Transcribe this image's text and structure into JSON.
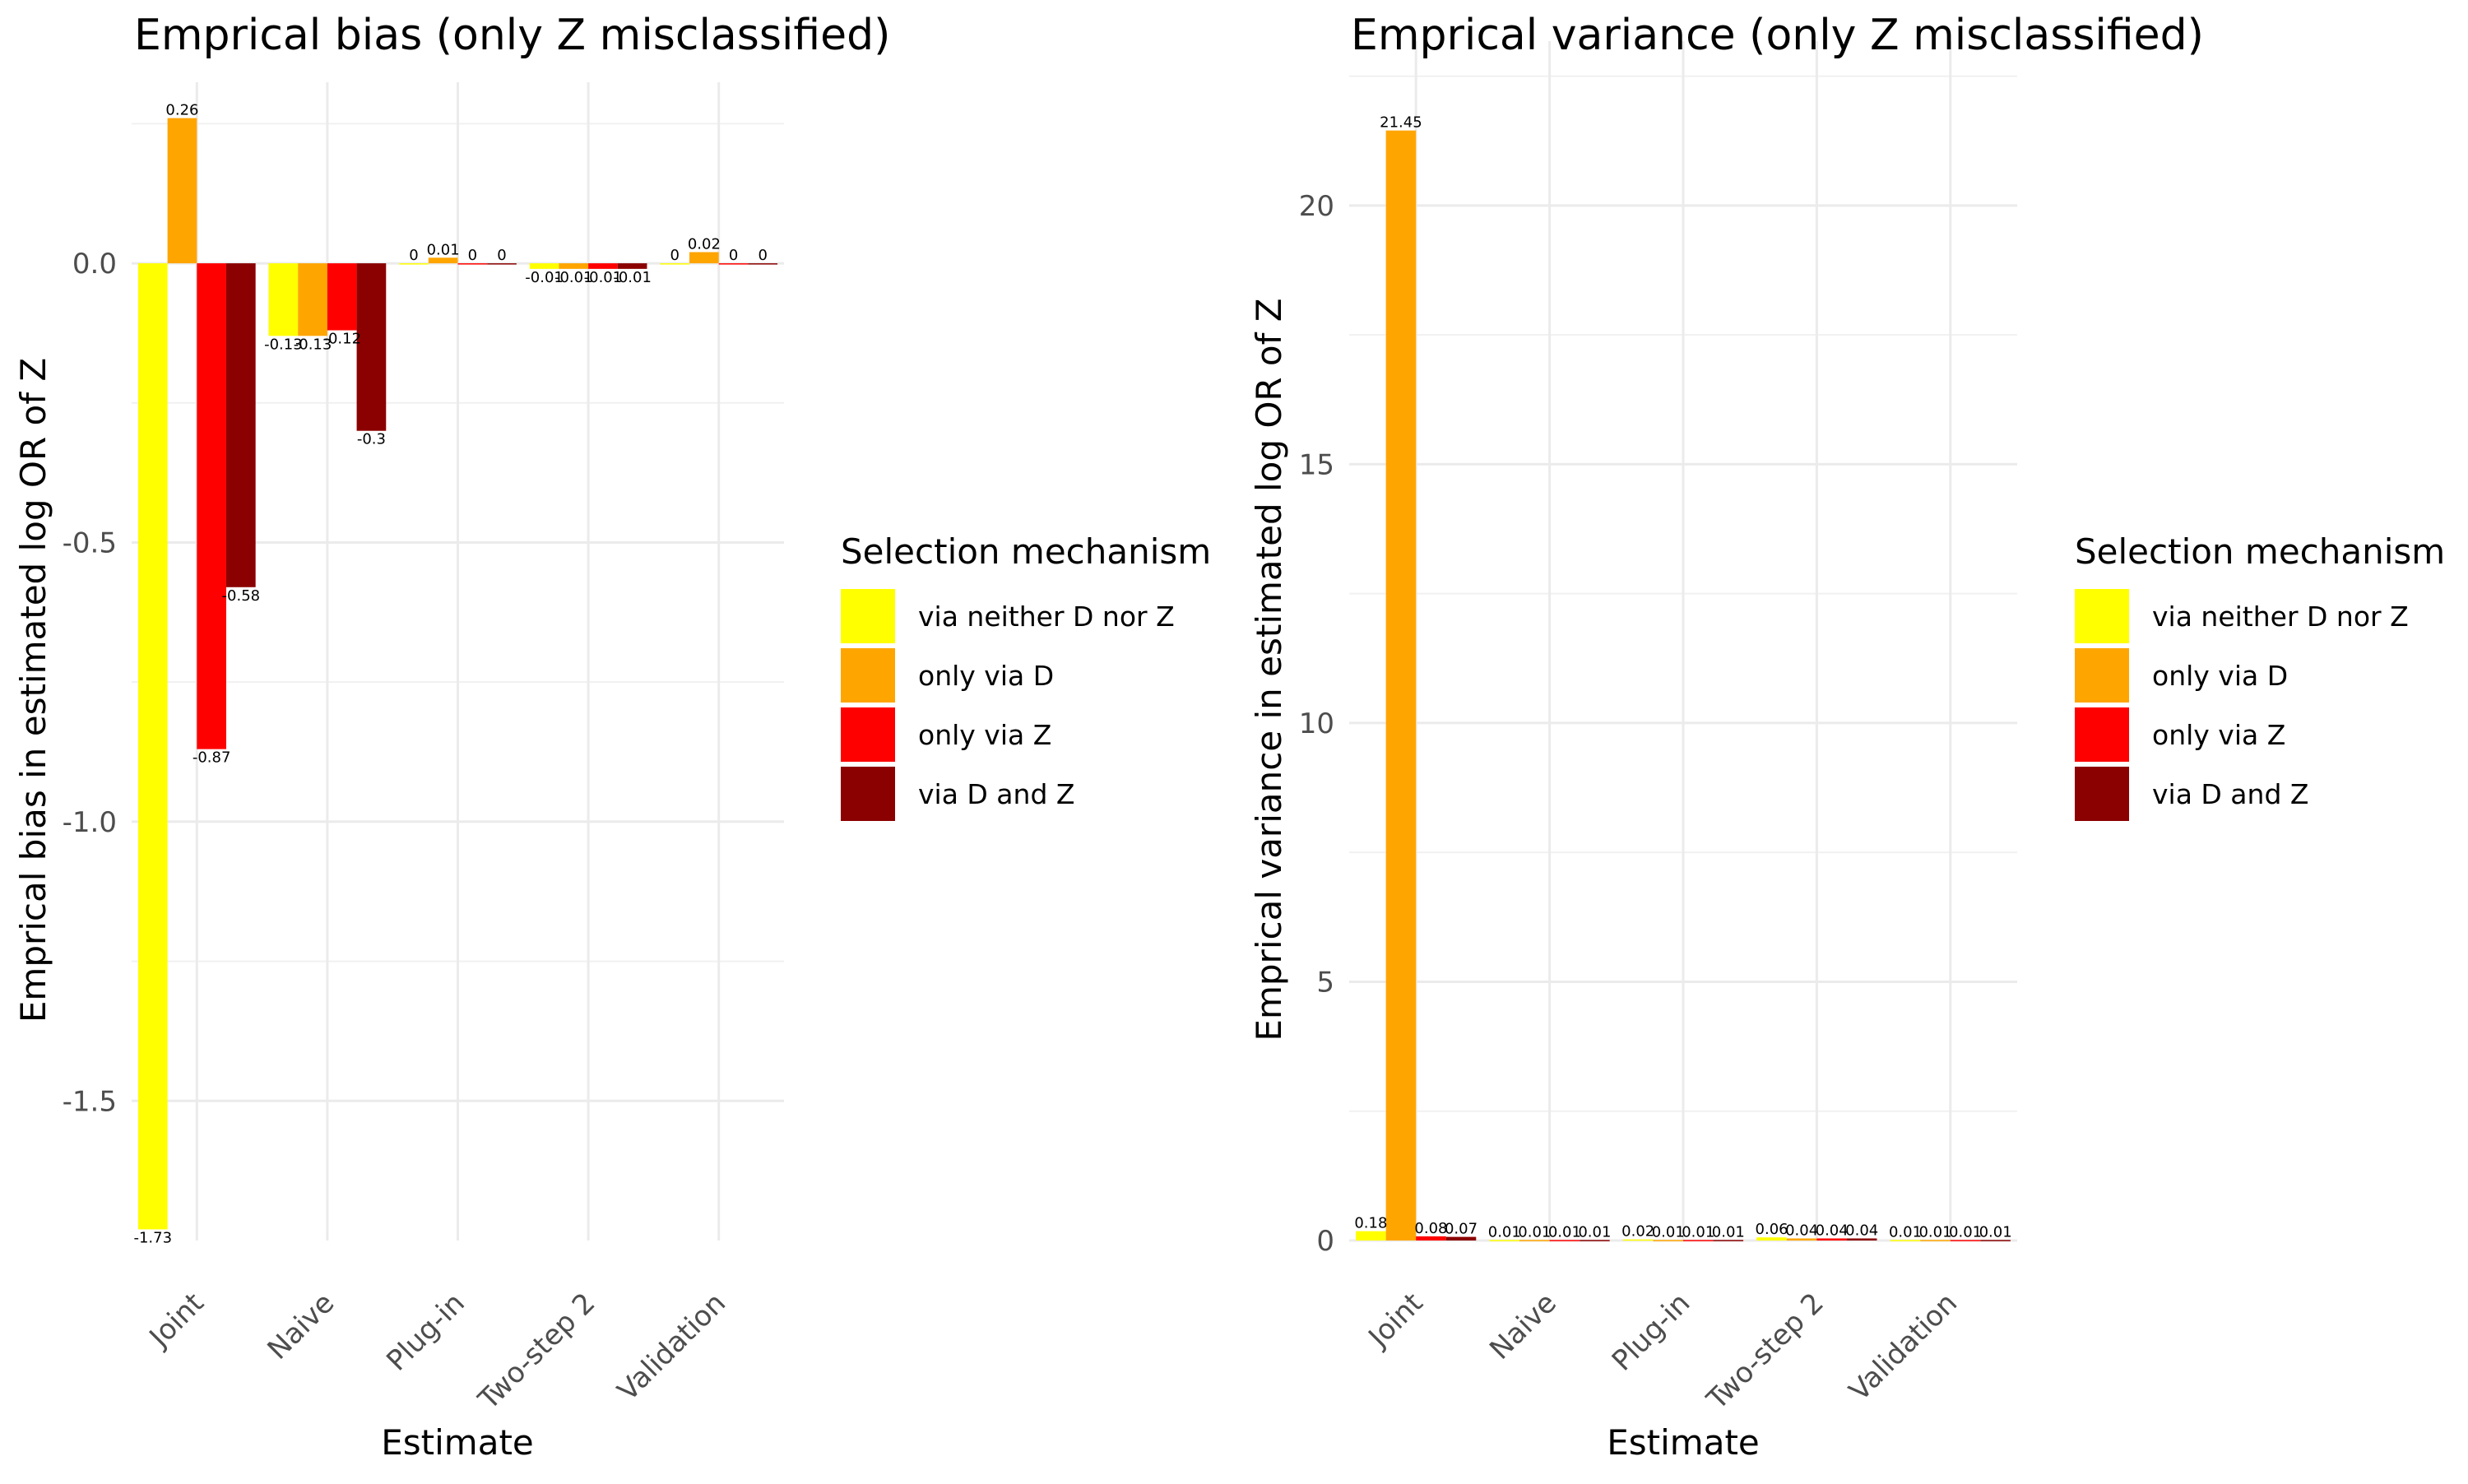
{
  "legend": {
    "title": "Selection mechanism",
    "items": [
      "via neither D nor Z",
      "only via D",
      "only via Z",
      "via D and Z"
    ]
  },
  "colors": {
    "via neither D nor Z": "#FFFF00",
    "only via D": "#FFA500",
    "only via Z": "#FF0000",
    "via D and Z": "#8B0000"
  },
  "chart_data": [
    {
      "type": "bar",
      "title": "Emprical bias (only Z misclassified)",
      "xlabel": "Estimate",
      "ylabel": "Emprical bias in estimated log OR of Z",
      "categories": [
        "Joint",
        "Naive",
        "Plug-in",
        "Two-step 2",
        "Validation"
      ],
      "ylim": [
        -1.75,
        0.28
      ],
      "yticks": [
        0.0,
        -0.5,
        -1.0,
        -1.5
      ],
      "ytick_labels": [
        "0.0",
        "-0.5",
        "-1.0",
        "-1.5"
      ],
      "grid": true,
      "legend_position": "right",
      "series": [
        {
          "name": "via neither D nor Z",
          "values": [
            -1.73,
            -0.13,
            0,
            -0.01,
            0
          ],
          "labels": [
            "-1.73",
            "-0.13",
            "0",
            "-0.01",
            "0"
          ]
        },
        {
          "name": "only via D",
          "values": [
            0.26,
            -0.13,
            0.01,
            -0.01,
            0.02
          ],
          "labels": [
            "0.26",
            "-0.13",
            "0.01",
            "-0.01",
            "0.02"
          ]
        },
        {
          "name": "only via Z",
          "values": [
            -0.87,
            -0.12,
            0,
            -0.01,
            0
          ],
          "labels": [
            "-0.87",
            "-0.12",
            "0",
            "-0.01",
            "0"
          ]
        },
        {
          "name": "via D and Z",
          "values": [
            -0.58,
            -0.3,
            0,
            -0.01,
            0
          ],
          "labels": [
            "-0.58",
            "-0.3",
            "0",
            "-0.01",
            "0"
          ]
        }
      ]
    },
    {
      "type": "bar",
      "title": "Emprical variance (only Z misclassified)",
      "xlabel": "Estimate",
      "ylabel": "Emprical variance in estimated log OR of Z",
      "categories": [
        "Joint",
        "Naive",
        "Plug-in",
        "Two-step 2",
        "Validation"
      ],
      "ylim": [
        0,
        22.7
      ],
      "yticks": [
        0,
        5,
        10,
        15,
        20
      ],
      "ytick_labels": [
        "0",
        "5",
        "10",
        "15",
        "20"
      ],
      "grid": true,
      "legend_position": "right",
      "series": [
        {
          "name": "via neither D nor Z",
          "values": [
            0.18,
            0.01,
            0.02,
            0.06,
            0.01
          ],
          "labels": [
            "0.18",
            "0.01",
            "0.02",
            "0.06",
            "0.01"
          ]
        },
        {
          "name": "only via D",
          "values": [
            21.45,
            0.01,
            0.01,
            0.04,
            0.01
          ],
          "labels": [
            "21.45",
            "0.01",
            "0.01",
            "0.04",
            "0.01"
          ]
        },
        {
          "name": "only via Z",
          "values": [
            0.08,
            0.01,
            0.01,
            0.04,
            0.01
          ],
          "labels": [
            "0.08",
            "0.01",
            "0.01",
            "0.04",
            "0.01"
          ]
        },
        {
          "name": "via D and Z",
          "values": [
            0.07,
            0.01,
            0.01,
            0.04,
            0.01
          ],
          "labels": [
            "0.07",
            "0.01",
            "0.01",
            "0.04",
            "0.01"
          ]
        }
      ]
    }
  ]
}
